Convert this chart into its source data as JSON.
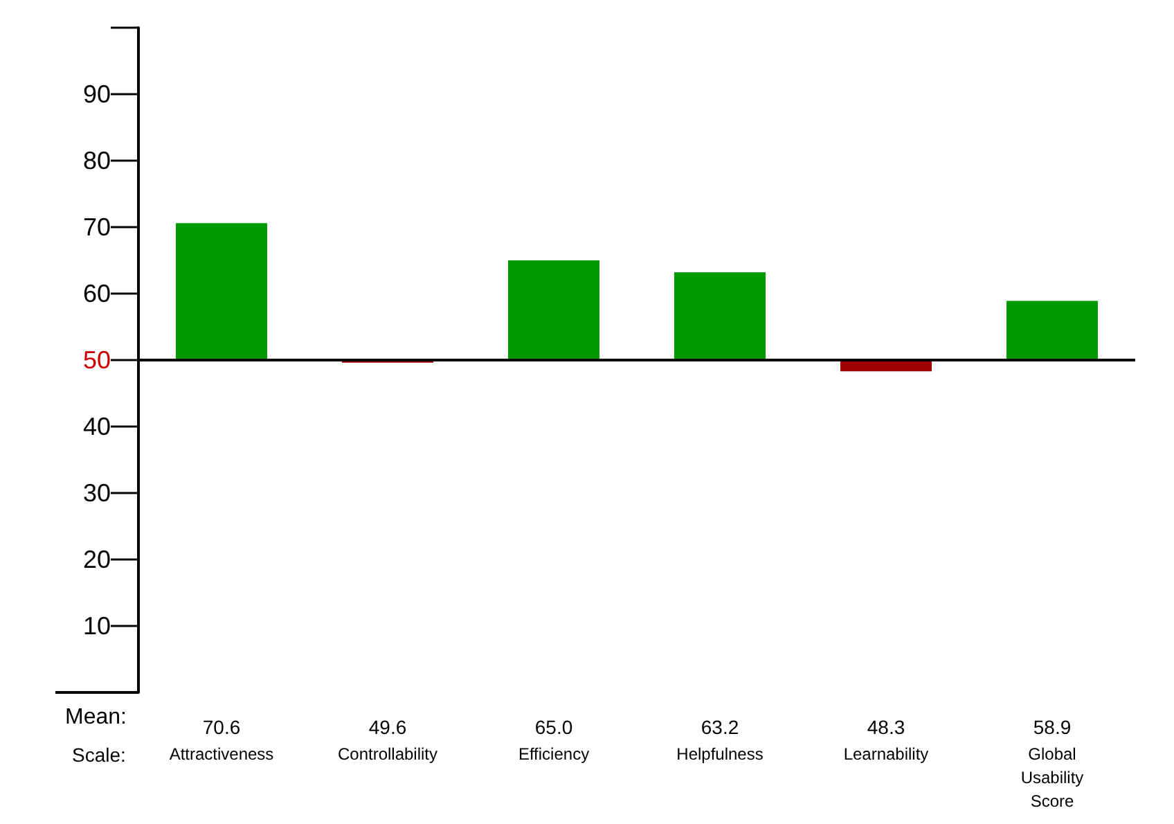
{
  "chart_data": {
    "type": "bar",
    "categories": [
      "Attractiveness",
      "Controllability",
      "Efficiency",
      "Helpfulness",
      "Learnability",
      "Global Usability Score"
    ],
    "base": [
      50,
      50,
      50,
      50,
      50,
      50
    ],
    "values": [
      20.6,
      -0.4,
      15.0,
      13.2,
      -1.7,
      8.9
    ],
    "value_labels": [
      "70.6",
      "49.6",
      "65.0",
      "63.2",
      "48.3",
      "58.9"
    ],
    "colors": [
      "#009900",
      "#a00000",
      "#009900",
      "#009900",
      "#a00000",
      "#009900"
    ],
    "ylim": [
      0,
      100
    ],
    "yticks": [
      10,
      20,
      30,
      40,
      50,
      60,
      70,
      80,
      90
    ],
    "ref_lines": [
      {
        "axis": "y",
        "value": 50,
        "color": "#000000"
      }
    ],
    "annotations": [
      "Mean:",
      "Scale:"
    ]
  }
}
